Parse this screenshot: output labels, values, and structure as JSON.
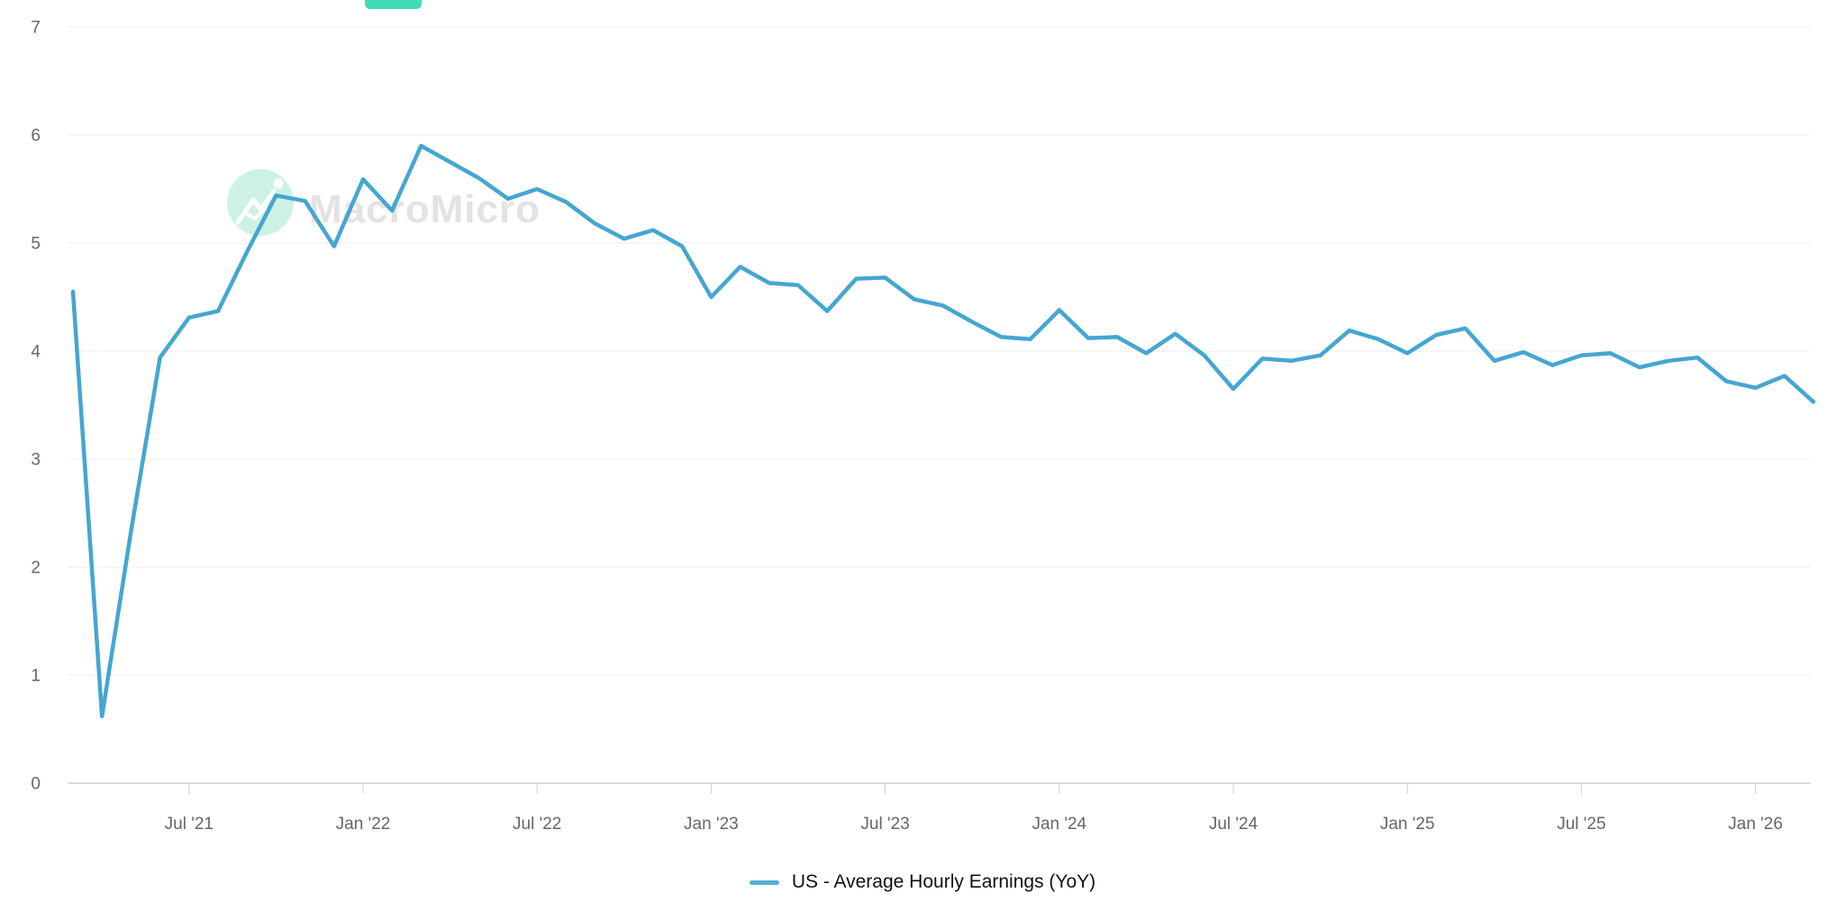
{
  "page": {
    "background": "#ffffff"
  },
  "top_button": {
    "color": "#3edcb6"
  },
  "watermark": {
    "text": "MacroMicro",
    "circle_color": "#cdf2e4",
    "glyph": "mountain-peaks-with-sun",
    "text_color": "#e3e3e3"
  },
  "legend": {
    "label": "US - Average Hourly Earnings (YoY)",
    "swatch_color": "#55aed3",
    "text_color": "#111111"
  },
  "chart_data": {
    "type": "line",
    "title": "",
    "xlabel": "",
    "ylabel": "",
    "ylim": [
      0,
      7
    ],
    "grid": true,
    "legend_position": "bottom-center",
    "y_ticks": [
      0,
      1,
      2,
      3,
      4,
      5,
      6,
      7
    ],
    "x_tick_labels": [
      "Jul '21",
      "Jan '22",
      "Jul '22",
      "Jan '23",
      "Jul '23",
      "Jan '24",
      "Jul '24",
      "Jan '25",
      "Jul '25",
      "Jan '26"
    ],
    "x_tick_indices": [
      4,
      10,
      16,
      22,
      28,
      34,
      40,
      46,
      52,
      58
    ],
    "grid_color": "#ececec",
    "axis_line_color": "#cfcfcf",
    "axis_label_color": "#666666",
    "series": [
      {
        "name": "US - Average Hourly Earnings (YoY)",
        "color": "#45a6d1",
        "x": [
          "Mar '21",
          "Apr '21",
          "May '21",
          "Jun '21",
          "Jul '21",
          "Aug '21",
          "Sep '21",
          "Oct '21",
          "Nov '21",
          "Dec '21",
          "Jan '22",
          "Feb '22",
          "Mar '22",
          "Apr '22",
          "May '22",
          "Jun '22",
          "Jul '22",
          "Aug '22",
          "Sep '22",
          "Oct '22",
          "Nov '22",
          "Dec '22",
          "Jan '23",
          "Feb '23",
          "Mar '23",
          "Apr '23",
          "May '23",
          "Jun '23",
          "Jul '23",
          "Aug '23",
          "Sep '23",
          "Oct '23",
          "Nov '23",
          "Dec '23",
          "Jan '24",
          "Feb '24",
          "Mar '24",
          "Apr '24",
          "May '24",
          "Jun '24",
          "Jul '24",
          "Aug '24",
          "Sep '24",
          "Oct '24",
          "Nov '24",
          "Dec '24",
          "Jan '25",
          "Feb '25",
          "Mar '25",
          "Apr '25",
          "May '25",
          "Jun '25",
          "Jul '25",
          "Aug '25",
          "Sep '25",
          "Oct '25",
          "Nov '25",
          "Dec '25",
          "Jan '26",
          "Feb '26",
          "Mar '26"
        ],
        "values": [
          4.55,
          0.62,
          2.33,
          3.94,
          4.31,
          4.37,
          4.92,
          5.44,
          5.39,
          4.97,
          5.59,
          5.3,
          5.9,
          5.75,
          5.6,
          5.41,
          5.5,
          5.38,
          5.18,
          5.04,
          5.12,
          4.97,
          4.5,
          4.78,
          4.63,
          4.61,
          4.37,
          4.67,
          4.68,
          4.48,
          4.42,
          4.27,
          4.13,
          4.11,
          4.38,
          4.12,
          4.13,
          3.98,
          4.16,
          3.96,
          3.65,
          3.93,
          3.91,
          3.96,
          4.19,
          4.11,
          3.98,
          4.15,
          4.21,
          3.91,
          3.99,
          3.87,
          3.96,
          3.98,
          3.85,
          3.91,
          3.94,
          3.72,
          3.66,
          3.77,
          3.53
        ]
      }
    ]
  }
}
